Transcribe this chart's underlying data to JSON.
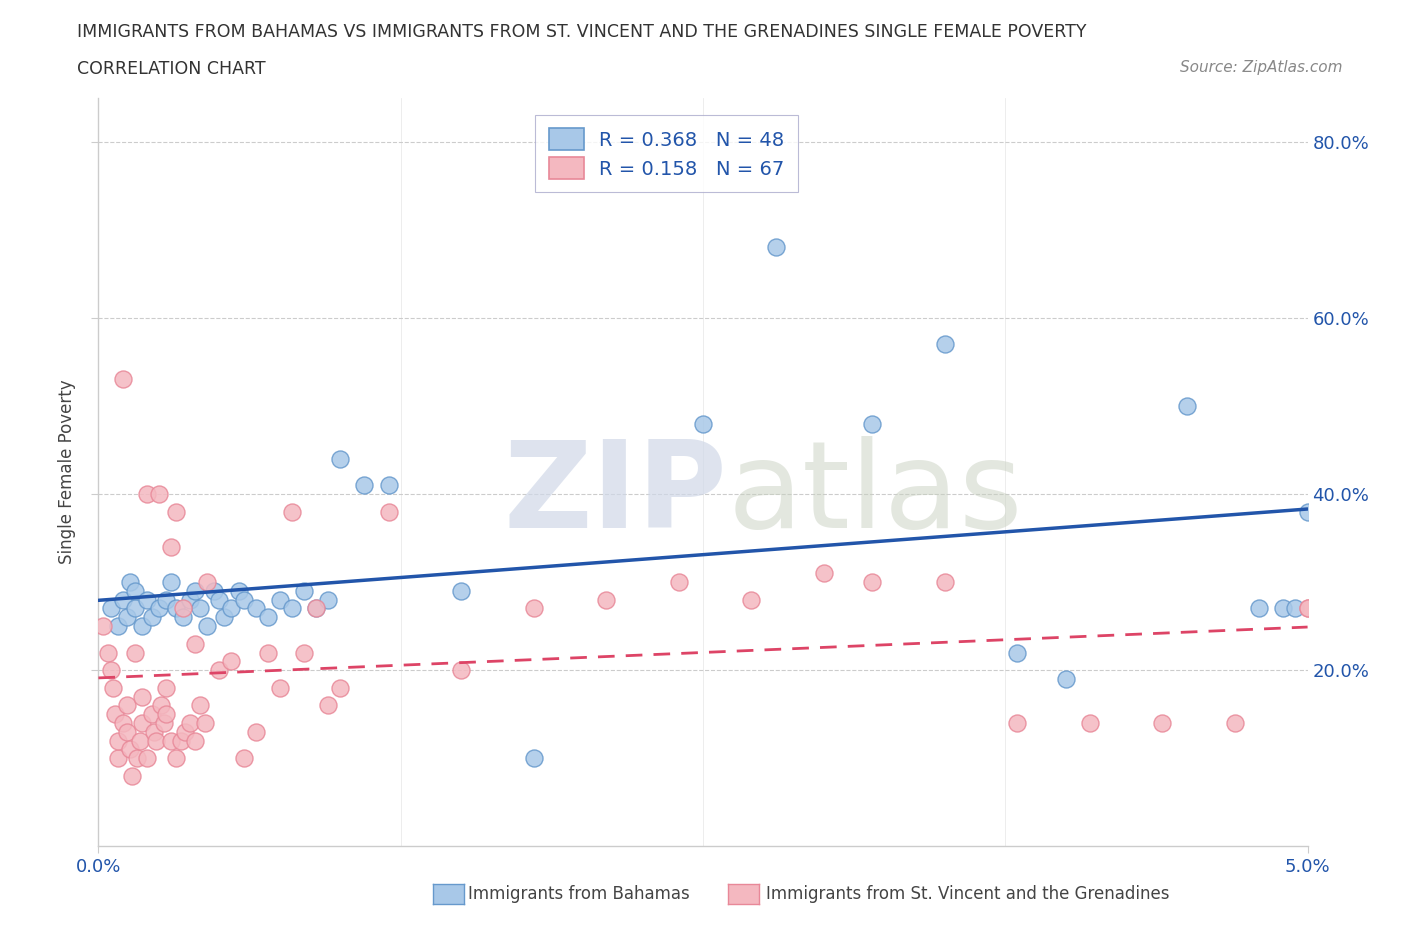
{
  "title_line1": "IMMIGRANTS FROM BAHAMAS VS IMMIGRANTS FROM ST. VINCENT AND THE GRENADINES SINGLE FEMALE POVERTY",
  "title_line2": "CORRELATION CHART",
  "source": "Source: ZipAtlas.com",
  "ylabel": "Single Female Poverty",
  "watermark_zip": "ZIP",
  "watermark_atlas": "atlas",
  "legend_label1": "R = 0.368   N = 48",
  "legend_label2": "R = 0.158   N = 67",
  "blue_color": "#a8c8e8",
  "blue_edge": "#6699cc",
  "pink_color": "#f4b8c0",
  "pink_edge": "#e88898",
  "trend_blue": "#2255aa",
  "trend_pink": "#dd4466",
  "xlim": [
    0.0,
    5.0
  ],
  "ylim": [
    0.0,
    85.0
  ],
  "yticks": [
    20.0,
    40.0,
    60.0,
    80.0
  ],
  "ytick_labels": [
    "20.0%",
    "40.0%",
    "60.0%",
    "80.0%"
  ],
  "blue_x": [
    0.05,
    0.08,
    0.1,
    0.12,
    0.13,
    0.15,
    0.15,
    0.18,
    0.2,
    0.22,
    0.25,
    0.28,
    0.3,
    0.32,
    0.35,
    0.38,
    0.4,
    0.42,
    0.45,
    0.48,
    0.5,
    0.52,
    0.55,
    0.58,
    0.6,
    0.65,
    0.7,
    0.75,
    0.8,
    0.85,
    0.9,
    0.95,
    1.0,
    1.1,
    1.2,
    1.5,
    1.8,
    2.5,
    2.8,
    3.2,
    3.5,
    3.8,
    4.0,
    4.5,
    4.8,
    4.9,
    4.95,
    5.0
  ],
  "blue_y": [
    27.0,
    25.0,
    28.0,
    26.0,
    30.0,
    29.0,
    27.0,
    25.0,
    28.0,
    26.0,
    27.0,
    28.0,
    30.0,
    27.0,
    26.0,
    28.0,
    29.0,
    27.0,
    25.0,
    29.0,
    28.0,
    26.0,
    27.0,
    29.0,
    28.0,
    27.0,
    26.0,
    28.0,
    27.0,
    29.0,
    27.0,
    28.0,
    44.0,
    41.0,
    41.0,
    29.0,
    10.0,
    48.0,
    68.0,
    48.0,
    57.0,
    22.0,
    19.0,
    50.0,
    27.0,
    27.0,
    27.0,
    38.0
  ],
  "pink_x": [
    0.02,
    0.04,
    0.05,
    0.06,
    0.07,
    0.08,
    0.08,
    0.1,
    0.1,
    0.12,
    0.12,
    0.13,
    0.14,
    0.15,
    0.16,
    0.17,
    0.18,
    0.18,
    0.2,
    0.2,
    0.22,
    0.23,
    0.24,
    0.25,
    0.26,
    0.27,
    0.28,
    0.28,
    0.3,
    0.3,
    0.32,
    0.32,
    0.34,
    0.35,
    0.36,
    0.38,
    0.4,
    0.4,
    0.42,
    0.44,
    0.45,
    0.5,
    0.55,
    0.6,
    0.65,
    0.7,
    0.75,
    0.8,
    0.85,
    0.9,
    0.95,
    1.0,
    1.2,
    1.5,
    1.8,
    2.1,
    2.4,
    2.7,
    3.0,
    3.2,
    3.5,
    3.8,
    4.1,
    4.4,
    4.7,
    5.0,
    5.0
  ],
  "pink_y": [
    25.0,
    22.0,
    20.0,
    18.0,
    15.0,
    10.0,
    12.0,
    53.0,
    14.0,
    16.0,
    13.0,
    11.0,
    8.0,
    22.0,
    10.0,
    12.0,
    14.0,
    17.0,
    40.0,
    10.0,
    15.0,
    13.0,
    12.0,
    40.0,
    16.0,
    14.0,
    18.0,
    15.0,
    34.0,
    12.0,
    38.0,
    10.0,
    12.0,
    27.0,
    13.0,
    14.0,
    23.0,
    12.0,
    16.0,
    14.0,
    30.0,
    20.0,
    21.0,
    10.0,
    13.0,
    22.0,
    18.0,
    38.0,
    22.0,
    27.0,
    16.0,
    18.0,
    38.0,
    20.0,
    27.0,
    28.0,
    30.0,
    28.0,
    31.0,
    30.0,
    30.0,
    14.0,
    14.0,
    14.0,
    14.0,
    27.0,
    27.0
  ]
}
